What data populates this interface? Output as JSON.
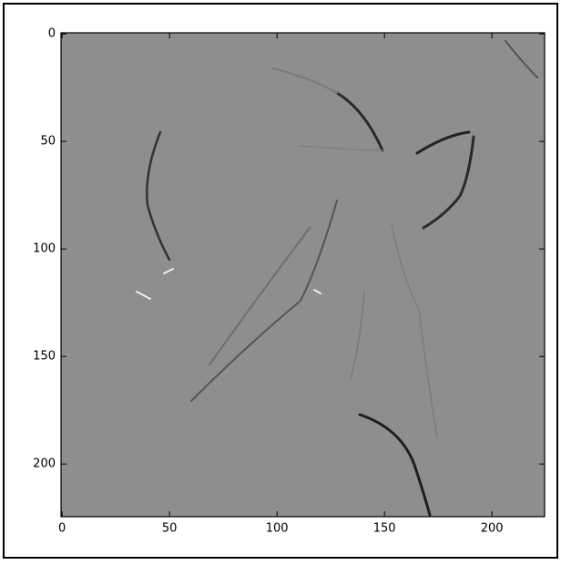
{
  "chart_data": {
    "type": "image",
    "xlim": [
      -0.5,
      224.5
    ],
    "ylim": [
      224.5,
      -0.5
    ],
    "xticks": [
      0,
      50,
      100,
      150,
      200
    ],
    "yticks": [
      0,
      50,
      100,
      150,
      200
    ]
  }
}
